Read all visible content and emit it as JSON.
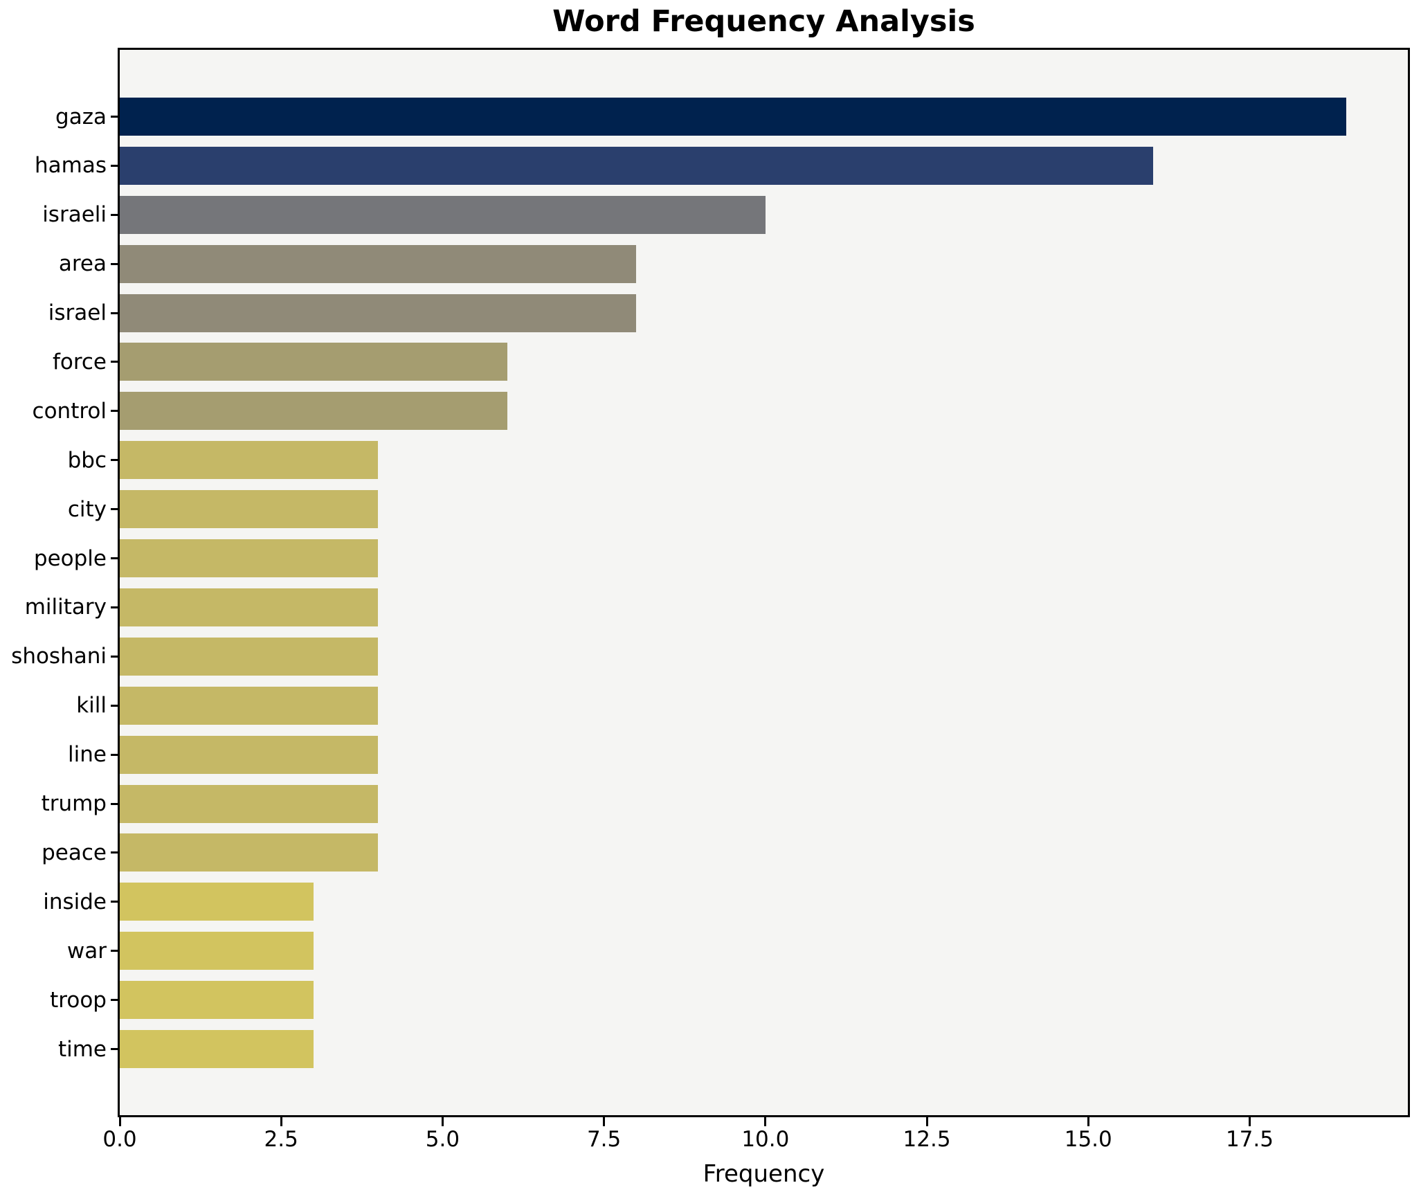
{
  "chart_data": {
    "type": "bar",
    "orientation": "horizontal",
    "title": "Word Frequency Analysis",
    "xlabel": "Frequency",
    "ylabel": "",
    "categories": [
      "gaza",
      "hamas",
      "israeli",
      "area",
      "israel",
      "force",
      "control",
      "bbc",
      "city",
      "people",
      "military",
      "shoshani",
      "kill",
      "line",
      "trump",
      "peace",
      "inside",
      "war",
      "troop",
      "time"
    ],
    "values": [
      19,
      16,
      10,
      8,
      8,
      6,
      6,
      4,
      4,
      4,
      4,
      4,
      4,
      4,
      4,
      4,
      3,
      3,
      3,
      3
    ],
    "bar_colors": [
      "#00224e",
      "#2a3f6d",
      "#75767a",
      "#908a78",
      "#908a78",
      "#a59d70",
      "#a59d70",
      "#c5b866",
      "#c5b866",
      "#c5b866",
      "#c5b866",
      "#c5b866",
      "#c5b866",
      "#c5b866",
      "#c5b866",
      "#c5b866",
      "#d2c45f",
      "#d2c45f",
      "#d2c45f",
      "#d2c45f"
    ],
    "xlim": [
      0,
      19.95
    ],
    "xticks": [
      0,
      2.5,
      5,
      7.5,
      10,
      12.5,
      15,
      17.5
    ],
    "xtick_labels": [
      "0.0",
      "2.5",
      "5.0",
      "7.5",
      "10.0",
      "12.5",
      "15.0",
      "17.5"
    ],
    "grid": false,
    "legend_position": "none",
    "plot_background": "#f5f5f3",
    "figure_background": "#ffffff",
    "spine_color": "#000000"
  }
}
